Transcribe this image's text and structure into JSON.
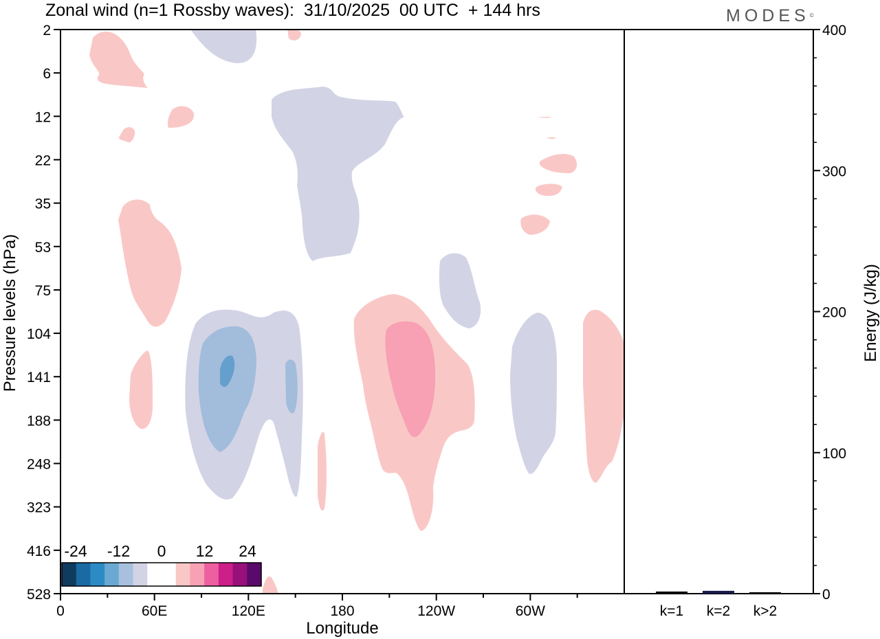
{
  "title": "Zonal wind (n=1 Rossby waves):  31/10/2025  00 UTC  + 144 hrs",
  "logo": "MODES",
  "logo_mark": "©",
  "colors": {
    "neg_light": "#d3d3e6",
    "neg_mid": "#a2bcdb",
    "neg_strong": "#659fcd",
    "pos_light": "#f9c8c6",
    "pos_mid": "#f8a0b4",
    "frame": "#000000"
  },
  "chart_data": [
    {
      "type": "heatmap",
      "title": "Zonal wind (n=1 Rossby waves):  31/10/2025  00 UTC  + 144 hrs",
      "xlabel": "Longitude",
      "ylabel": "Pressure levels (hPa)",
      "x_ticks": [
        "0",
        "60E",
        "120E",
        "180",
        "120W",
        "60W"
      ],
      "y_ticks": [
        "2",
        "6",
        "12",
        "22",
        "35",
        "53",
        "75",
        "104",
        "141",
        "188",
        "248",
        "323",
        "416",
        "528"
      ],
      "xlim": [
        0,
        360
      ],
      "colorbar": {
        "labels": [
          "-24",
          "-12",
          "0",
          "12",
          "24"
        ],
        "colors": [
          "#0f3b5e",
          "#1b6aa4",
          "#2c8bc5",
          "#6aaad2",
          "#a8c0dd",
          "#d3d3e6",
          "#ffffff",
          "#ffffff",
          "#f9c8c6",
          "#f8a0b4",
          "#ee5fa0",
          "#cc1f8a",
          "#98107a",
          "#5a0a6a"
        ]
      }
    },
    {
      "type": "bar",
      "ylabel": "Energy (J/kg)",
      "categories": [
        "k=1",
        "k=2",
        "k>2"
      ],
      "values": [
        1.5,
        2,
        1
      ],
      "ylim": [
        0,
        400
      ],
      "y_ticks": [
        "0",
        "100",
        "200",
        "300",
        "400"
      ],
      "bar_colors": [
        "#000000",
        "#1a1a4a",
        "#000000"
      ]
    }
  ]
}
